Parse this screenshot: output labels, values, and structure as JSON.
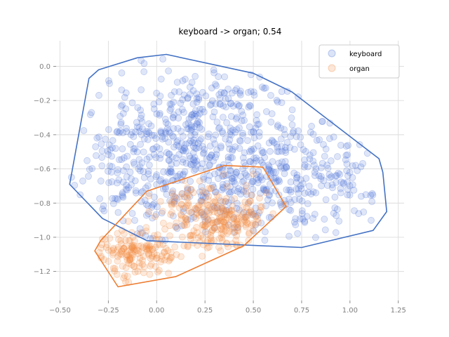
{
  "chart_data": {
    "type": "scatter",
    "title": "keyboard -> organ; 0.54",
    "xlabel": "",
    "ylabel": "",
    "xlim": [
      -0.52,
      1.28
    ],
    "ylim": [
      -1.37,
      0.15
    ],
    "x_ticks": [
      -0.5,
      -0.25,
      0.0,
      0.25,
      0.5,
      0.75,
      1.0,
      1.25
    ],
    "x_tick_labels": [
      "−0.50",
      "−0.25",
      "0.00",
      "0.25",
      "0.50",
      "0.75",
      "1.00",
      "1.25"
    ],
    "y_ticks": [
      0.0,
      -0.2,
      -0.4,
      -0.6,
      -0.8,
      -1.0,
      -1.2
    ],
    "y_tick_labels": [
      "0.0",
      "−0.2",
      "−0.4",
      "−0.6",
      "−0.8",
      "−1.0",
      "−1.2"
    ],
    "grid": true,
    "legend_position": "top-right",
    "series": [
      {
        "name": "keyboard",
        "color": "#4c72d6",
        "hull_color": "#4472c4",
        "point_count": 900,
        "hull": [
          [
            -0.45,
            -0.69
          ],
          [
            -0.35,
            -0.07
          ],
          [
            -0.3,
            -0.02
          ],
          [
            -0.1,
            0.05
          ],
          [
            0.05,
            0.07
          ],
          [
            0.5,
            -0.04
          ],
          [
            0.7,
            -0.15
          ],
          [
            1.15,
            -0.54
          ],
          [
            1.17,
            -0.62
          ],
          [
            1.19,
            -0.85
          ],
          [
            1.12,
            -0.96
          ],
          [
            0.75,
            -1.06
          ],
          [
            -0.05,
            -1.02
          ],
          [
            -0.28,
            -0.89
          ]
        ],
        "clusters": [
          {
            "cx": 0.28,
            "cy": -0.5,
            "sx": 0.33,
            "sy": 0.27,
            "n": 700
          },
          {
            "cx": 0.82,
            "cy": -0.7,
            "sx": 0.18,
            "sy": 0.15,
            "n": 140
          },
          {
            "cx": -0.15,
            "cy": -0.65,
            "sx": 0.14,
            "sy": 0.2,
            "n": 60
          }
        ]
      },
      {
        "name": "organ",
        "color": "#f2893f",
        "hull_color": "#ed7d31",
        "point_count": 420,
        "hull": [
          [
            -0.32,
            -1.08
          ],
          [
            -0.2,
            -1.29
          ],
          [
            0.1,
            -1.23
          ],
          [
            0.45,
            -1.05
          ],
          [
            0.67,
            -0.82
          ],
          [
            0.55,
            -0.59
          ],
          [
            0.35,
            -0.58
          ],
          [
            -0.05,
            -0.73
          ],
          [
            -0.29,
            -1.02
          ]
        ],
        "clusters": [
          {
            "cx": 0.3,
            "cy": -0.88,
            "sx": 0.14,
            "sy": 0.1,
            "n": 260
          },
          {
            "cx": -0.1,
            "cy": -1.1,
            "sx": 0.1,
            "sy": 0.07,
            "n": 160
          }
        ]
      }
    ]
  }
}
